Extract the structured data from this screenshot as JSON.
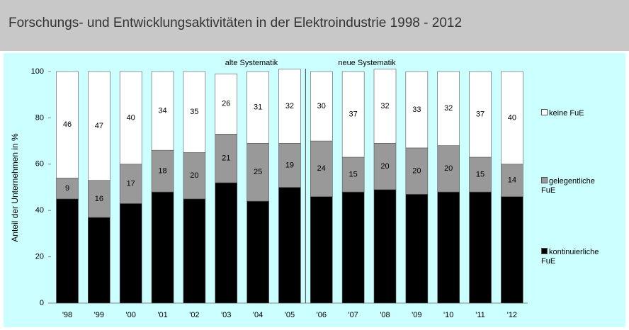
{
  "chart_data": {
    "type": "stacked-bar",
    "title": "Forschungs- und Entwicklungsaktivitäten in der Elektroindustrie 1998 - 2012",
    "y_label": "Anteil der Unternehmen in %",
    "annotations": [
      "alte Systematik",
      "neue Systematik"
    ],
    "categories": [
      "'98",
      "'99",
      "'00",
      "'01",
      "'02",
      "'03",
      "'04",
      "'05",
      "'06",
      "'07",
      "'08",
      "'09",
      "'10",
      "'11",
      "'12"
    ],
    "series": [
      {
        "name": "kontinuierliche FuE",
        "color": "#000000",
        "values": [
          45,
          37,
          43,
          48,
          45,
          52,
          44,
          50,
          46,
          48,
          49,
          47,
          48,
          48,
          46
        ]
      },
      {
        "name": "gelegentliche FuE",
        "color": "#999999",
        "values": [
          9,
          16,
          17,
          18,
          20,
          21,
          25,
          19,
          24,
          15,
          20,
          20,
          20,
          15,
          14
        ]
      },
      {
        "name": "keine FuE",
        "color": "#ffffff",
        "values": [
          46,
          47,
          40,
          34,
          35,
          26,
          31,
          32,
          30,
          37,
          32,
          33,
          32,
          37,
          40
        ]
      }
    ],
    "ylim": [
      0,
      100
    ],
    "yticks": [
      0,
      20,
      40,
      60,
      80,
      100
    ],
    "grid": false
  }
}
